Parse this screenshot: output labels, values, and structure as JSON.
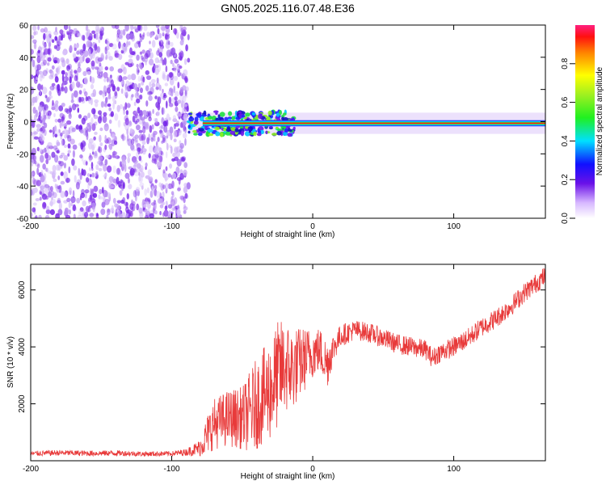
{
  "page": {
    "title": "GN05.2025.116.07.48.E36"
  },
  "colors": {
    "snr_line": "#e83a3a",
    "spec_low": "#d8c0f8",
    "spec_mid": "#6020e0",
    "spec_high": "#e02020"
  },
  "chart_data": [
    {
      "type": "heatmap",
      "title": "GN05.2025.116.07.48.E36",
      "xlabel": "Height of straight line (km)",
      "ylabel": "Frequency (Hz)",
      "xlim": [
        -200,
        165
      ],
      "ylim": [
        -60,
        60
      ],
      "x_ticks": [
        -200,
        -100,
        0,
        100
      ],
      "x_tick_labels": [
        "-200",
        "-100",
        "0",
        "100"
      ],
      "y_ticks": [
        -60,
        -40,
        -20,
        0,
        20,
        40,
        60
      ],
      "y_tick_labels": [
        "-60",
        "-40",
        "-20",
        "0",
        "20",
        "40",
        "60"
      ],
      "colorbar": {
        "label": "Normalized spectral amplitude",
        "range": [
          0,
          1
        ],
        "ticks": [
          0.0,
          0.2,
          0.4,
          0.6,
          0.8
        ],
        "tick_labels": [
          "0.0",
          "0.2",
          "0.4",
          "0.6",
          "0.8"
        ],
        "colormap": "rainbow (violet to red)"
      },
      "features": {
        "noise_region_x": [
          -200,
          -88
        ],
        "signal_band_center_hz": -1,
        "signal_band_halfwidth_hz": 3,
        "signal_start_x": -88
      },
      "grid": false
    },
    {
      "type": "line",
      "xlabel": "Height of straight line (km)",
      "ylabel": "SNR (10 * v/v)",
      "xlim": [
        -200,
        165
      ],
      "ylim": [
        0,
        6900
      ],
      "x_ticks": [
        -200,
        -100,
        0,
        100
      ],
      "x_tick_labels": [
        "-200",
        "-100",
        "0",
        "100"
      ],
      "y_ticks": [
        2000,
        4000,
        6000
      ],
      "y_tick_labels": [
        "2000",
        "4000",
        "6000"
      ],
      "grid": false,
      "series": [
        {
          "x": [
            -200,
            -180,
            -160,
            -140,
            -120,
            -100,
            -90,
            -80,
            -75,
            -70,
            -60,
            -50,
            -45,
            -40,
            -30,
            -25,
            -20,
            -15,
            -10,
            -5,
            0,
            5,
            10,
            15,
            20,
            30,
            40,
            50,
            60,
            70,
            80,
            85,
            90,
            100,
            110,
            120,
            130,
            140,
            150,
            160,
            165
          ],
          "y": [
            250,
            280,
            260,
            270,
            240,
            250,
            300,
            450,
            900,
            1300,
            1500,
            1500,
            1700,
            2000,
            2500,
            3000,
            3300,
            3200,
            3400,
            3600,
            3800,
            3900,
            3400,
            4000,
            4400,
            4600,
            4500,
            4300,
            4100,
            4000,
            3900,
            3600,
            3800,
            4000,
            4300,
            4700,
            5000,
            5400,
            5900,
            6300,
            6500
          ],
          "spread": [
            90,
            100,
            100,
            100,
            90,
            90,
            120,
            300,
            700,
            900,
            1000,
            1100,
            1400,
            1600,
            1800,
            1900,
            1700,
            1500,
            1300,
            1100,
            900,
            800,
            900,
            500,
            400,
            350,
            350,
            350,
            350,
            350,
            350,
            350,
            350,
            350,
            350,
            350,
            350,
            350,
            350,
            350,
            350
          ]
        }
      ]
    }
  ]
}
